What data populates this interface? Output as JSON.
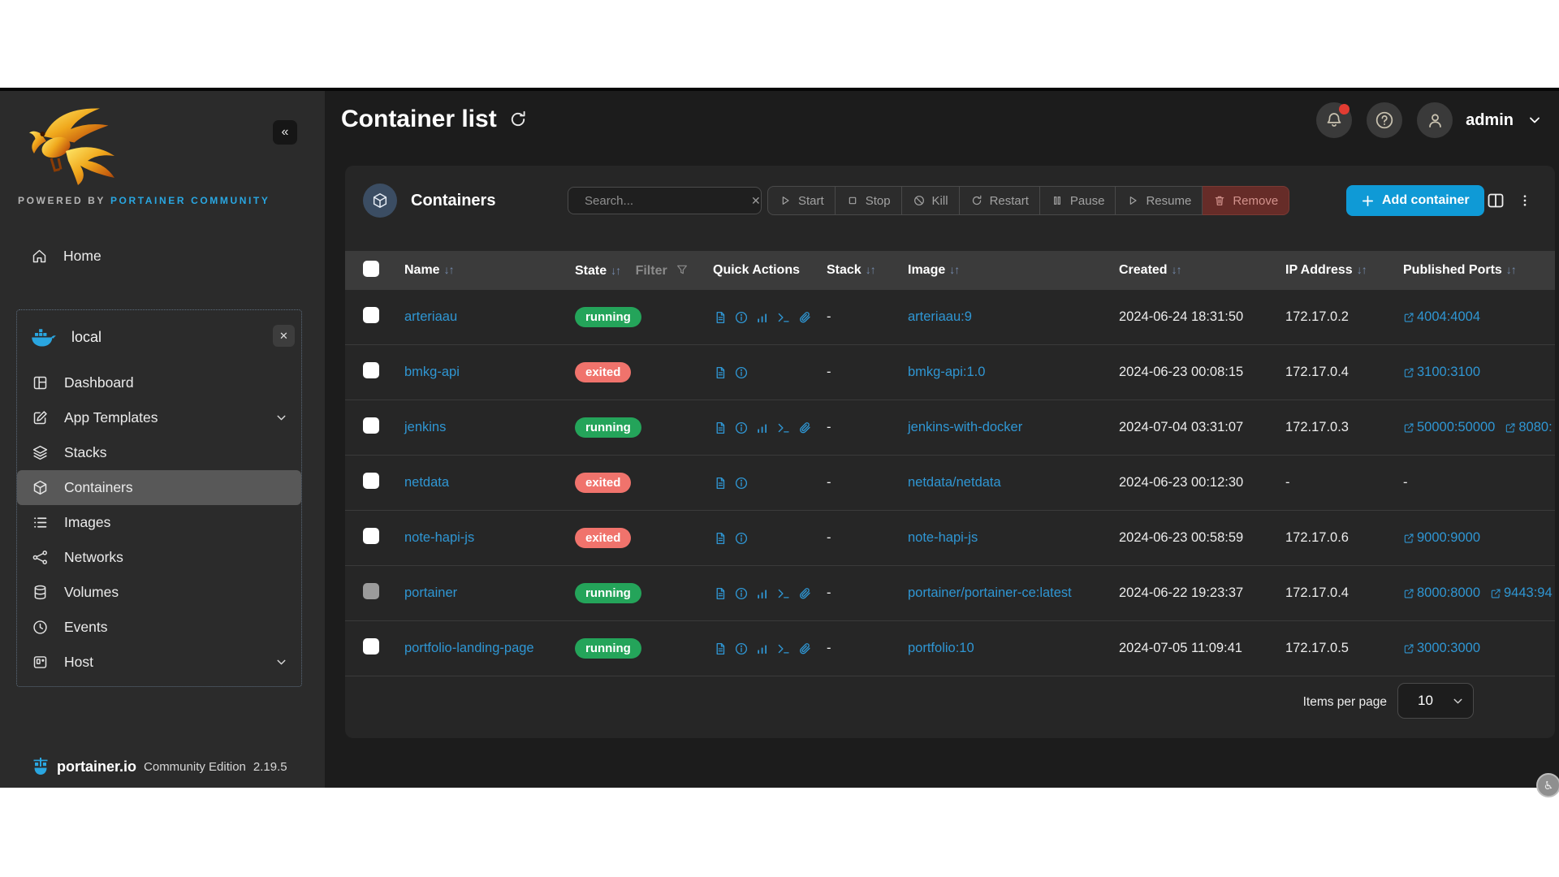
{
  "sidebar": {
    "powered_by": "POWERED BY",
    "brand": "PORTAINER COMMUNITY",
    "home": "Home",
    "environment": "local",
    "items": [
      "Dashboard",
      "App Templates",
      "Stacks",
      "Containers",
      "Images",
      "Networks",
      "Volumes",
      "Events",
      "Host"
    ],
    "selected_item": "Containers",
    "footer": {
      "brand": "portainer.io",
      "edition": "Community Edition",
      "version": "2.19.5"
    }
  },
  "header": {
    "title": "Container list",
    "user": "admin"
  },
  "widget": {
    "title": "Containers",
    "search_placeholder": "Search...",
    "actions": [
      "Start",
      "Stop",
      "Kill",
      "Restart",
      "Pause",
      "Resume",
      "Remove"
    ],
    "add_label": "Add container"
  },
  "table": {
    "sort_glyph": "↓↑",
    "headers": {
      "name": {
        "label": "Name"
      },
      "state": {
        "label": "State",
        "filter": "Filter"
      },
      "quick_actions": {
        "label": "Quick Actions"
      },
      "stack": {
        "label": "Stack"
      },
      "image": {
        "label": "Image"
      },
      "created": {
        "label": "Created"
      },
      "ip": {
        "label": "IP Address"
      },
      "ports": {
        "label": "Published Ports"
      }
    },
    "rows": [
      {
        "name": "arteriaau",
        "state": "running",
        "actions": [
          "logs",
          "inspect",
          "stats",
          "console",
          "attach"
        ],
        "stack": "-",
        "image": "arteriaau:9",
        "created": "2024-06-24 18:31:50",
        "ip": "172.17.0.2",
        "ports": [
          "4004:4004"
        ],
        "checkbox": "enabled"
      },
      {
        "name": "bmkg-api",
        "state": "exited",
        "actions": [
          "logs",
          "inspect"
        ],
        "stack": "-",
        "image": "bmkg-api:1.0",
        "created": "2024-06-23 00:08:15",
        "ip": "172.17.0.4",
        "ports": [
          "3100:3100"
        ],
        "checkbox": "enabled"
      },
      {
        "name": "jenkins",
        "state": "running",
        "actions": [
          "logs",
          "inspect",
          "stats",
          "console",
          "attach"
        ],
        "stack": "-",
        "image": "jenkins-with-docker",
        "created": "2024-07-04 03:31:07",
        "ip": "172.17.0.3",
        "ports": [
          "50000:50000",
          "8080:"
        ],
        "checkbox": "enabled"
      },
      {
        "name": "netdata",
        "state": "exited",
        "actions": [
          "logs",
          "inspect"
        ],
        "stack": "-",
        "image": "netdata/netdata",
        "created": "2024-06-23 00:12:30",
        "ip": "-",
        "ports": [
          "-"
        ],
        "checkbox": "enabled"
      },
      {
        "name": "note-hapi-js",
        "state": "exited",
        "actions": [
          "logs",
          "inspect"
        ],
        "stack": "-",
        "image": "note-hapi-js",
        "created": "2024-06-23 00:58:59",
        "ip": "172.17.0.6",
        "ports": [
          "9000:9000"
        ],
        "checkbox": "enabled"
      },
      {
        "name": "portainer",
        "state": "running",
        "actions": [
          "logs",
          "inspect",
          "stats",
          "console",
          "attach"
        ],
        "stack": "-",
        "image": "portainer/portainer-ce:latest",
        "created": "2024-06-22 19:23:37",
        "ip": "172.17.0.4",
        "ports": [
          "8000:8000",
          "9443:94"
        ],
        "checkbox": "disabled"
      },
      {
        "name": "portfolio-landing-page",
        "state": "running",
        "actions": [
          "logs",
          "inspect",
          "stats",
          "console",
          "attach"
        ],
        "stack": "-",
        "image": "portfolio:10",
        "created": "2024-07-05 11:09:41",
        "ip": "172.17.0.5",
        "ports": [
          "3000:3000"
        ],
        "checkbox": "enabled"
      }
    ]
  },
  "pagination": {
    "label": "Items per page",
    "value": "10"
  },
  "colors": {
    "link_blue": "#2f96d3",
    "add_button_blue": "#0f9ad6",
    "running_green": "#24a45a",
    "exited_red": "#f0736c",
    "brand_blue": "#29a7e2",
    "danger_button": "#662c28",
    "notification_red": "#e23c32"
  }
}
